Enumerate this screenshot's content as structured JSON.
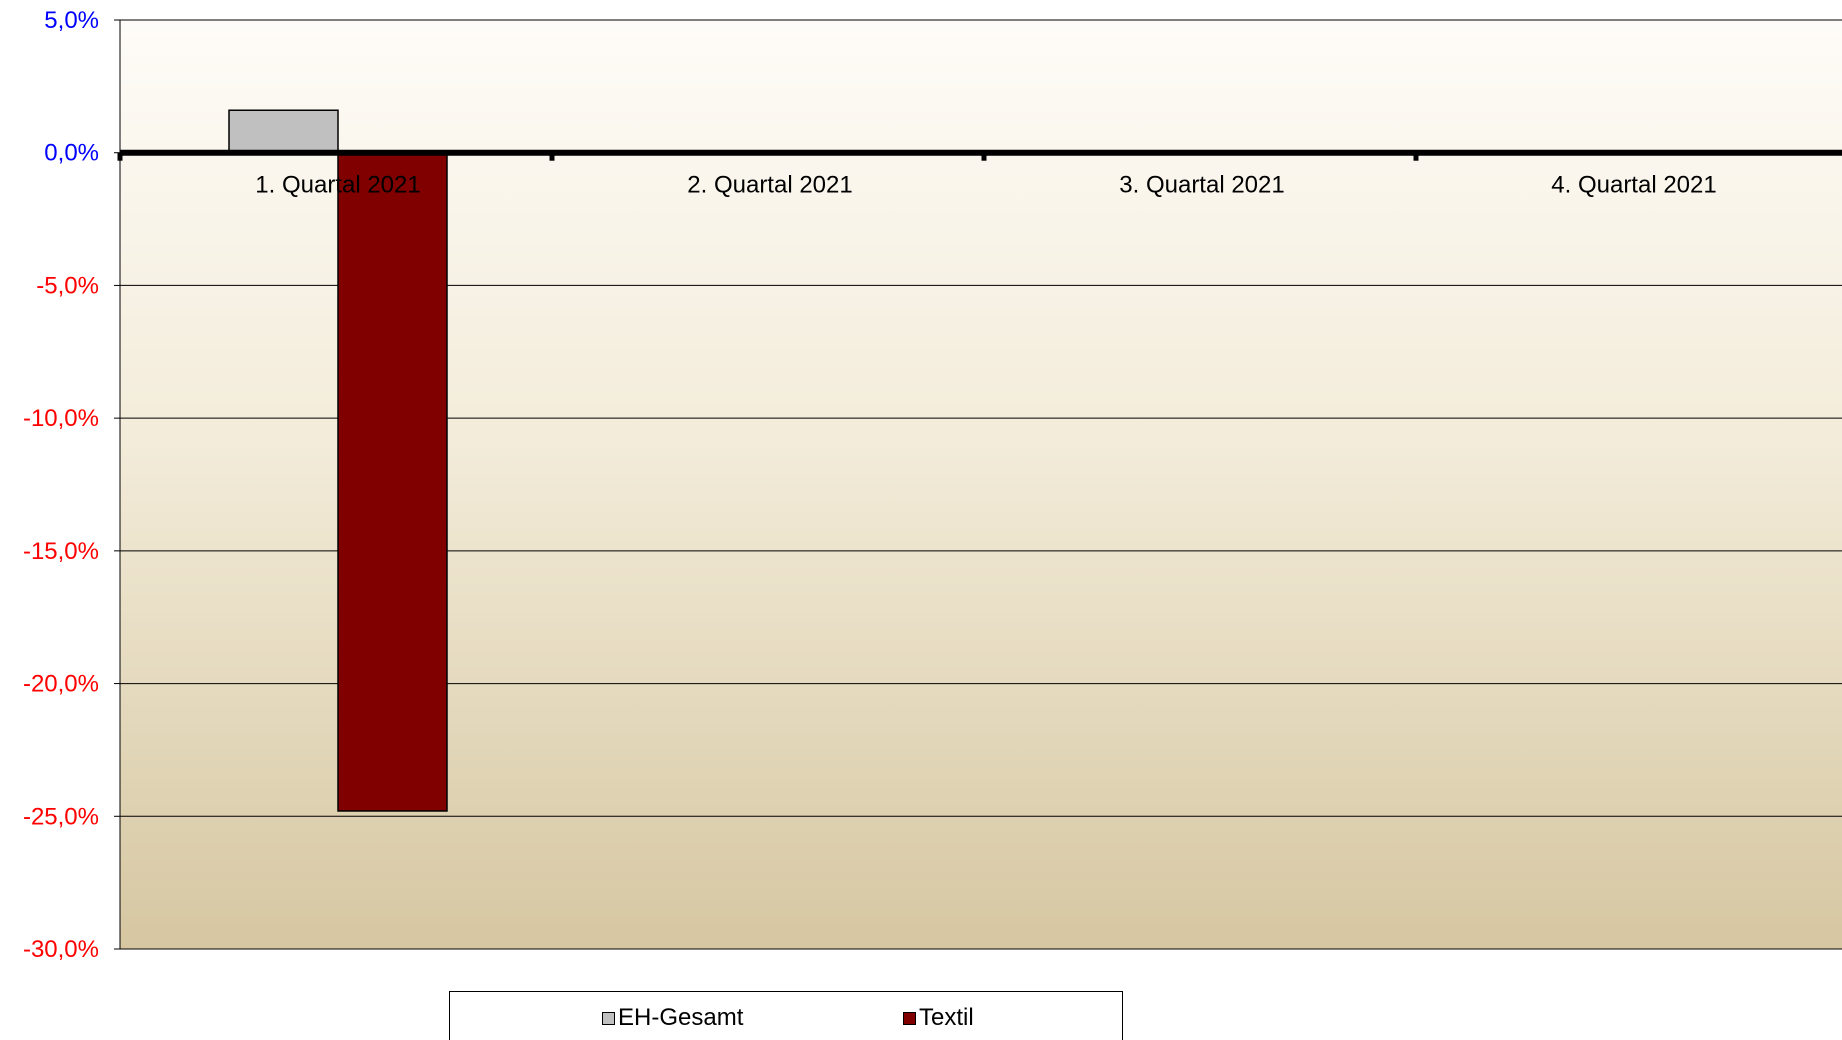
{
  "colors": {
    "plot_bg_top": "#fefcf8",
    "plot_bg_bottom": "#d6c7a1",
    "positive_tick": "#0000ff",
    "negative_tick": "#ff0000",
    "zero_line": "#000000",
    "series_eh": "#c0c0c0",
    "series_textil": "#800000"
  },
  "chart_data": {
    "type": "bar",
    "title": "",
    "xlabel": "",
    "ylabel": "",
    "categories": [
      "1. Quartal 2021",
      "2. Quartal 2021",
      "3. Quartal 2021",
      "4. Quartal 2021"
    ],
    "series": [
      {
        "name": "EH-Gesamt",
        "color": "#c0c0c0",
        "values": [
          1.6,
          null,
          null,
          null
        ]
      },
      {
        "name": "Textil",
        "color": "#800000",
        "values": [
          -24.8,
          null,
          null,
          null
        ]
      }
    ],
    "ylim": [
      -30,
      5
    ],
    "yticks": [
      5,
      0,
      -5,
      -10,
      -15,
      -20,
      -25,
      -30
    ],
    "ytick_labels": [
      "5,0%",
      "0,0%",
      "-5,0%",
      "-10,0%",
      "-15,0%",
      "-20,0%",
      "-25,0%",
      "-30,0%"
    ],
    "grid": true,
    "legend_position": "bottom"
  }
}
